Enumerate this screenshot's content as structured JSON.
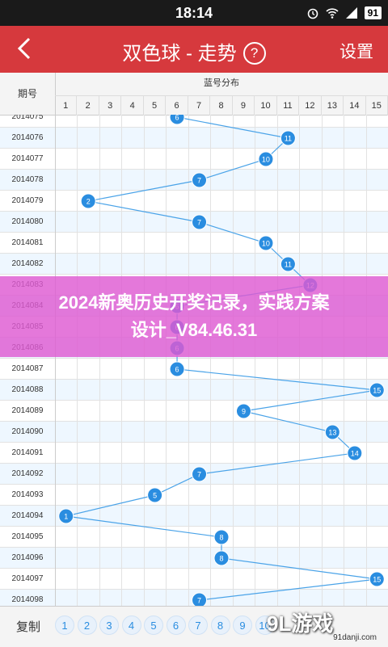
{
  "status_bar": {
    "time": "18:14",
    "battery": "91"
  },
  "title_bar": {
    "title": "双色球 - 走势",
    "help_icon": "?",
    "settings_label": "设置"
  },
  "header": {
    "period_label": "期号",
    "blue_ball_label": "蓝号分布",
    "columns": [
      "1",
      "2",
      "3",
      "4",
      "5",
      "6",
      "7",
      "8",
      "9",
      "10",
      "11",
      "12",
      "13",
      "14",
      "15"
    ]
  },
  "rows": [
    {
      "period": "2014075",
      "blue": 6
    },
    {
      "period": "2014076",
      "blue": 11
    },
    {
      "period": "2014077",
      "blue": 10
    },
    {
      "period": "2014078",
      "blue": 7
    },
    {
      "period": "2014079",
      "blue": 2
    },
    {
      "period": "2014080",
      "blue": 7
    },
    {
      "period": "2014081",
      "blue": 10
    },
    {
      "period": "2014082",
      "blue": 11
    },
    {
      "period": "2014083",
      "blue": 12
    },
    {
      "period": "2014084",
      "blue": 6
    },
    {
      "period": "2014085",
      "blue": 6
    },
    {
      "period": "2014086",
      "blue": 6
    },
    {
      "period": "2014087",
      "blue": 6
    },
    {
      "period": "2014088",
      "blue": 15
    },
    {
      "period": "2014089",
      "blue": 9
    },
    {
      "period": "2014090",
      "blue": 13
    },
    {
      "period": "2014091",
      "blue": 14
    },
    {
      "period": "2014092",
      "blue": 7
    },
    {
      "period": "2014093",
      "blue": 5
    },
    {
      "period": "2014094",
      "blue": 1
    },
    {
      "period": "2014095",
      "blue": 8
    },
    {
      "period": "2014096",
      "blue": 8
    },
    {
      "period": "2014097",
      "blue": 15
    },
    {
      "period": "2014098",
      "blue": 7
    }
  ],
  "banner": {
    "line1": "2024新奥历史开奖记录，实践方案",
    "line2": "设计_V84.46.31"
  },
  "footer": {
    "copy_label": "复制",
    "buttons": [
      "1",
      "2",
      "3",
      "4",
      "5",
      "6",
      "7",
      "8",
      "9",
      "10"
    ]
  },
  "watermark": {
    "brand": "9L游戏",
    "site": "91danji.com"
  },
  "colors": {
    "title_bar": "#d6393d",
    "ball": "#2a8de0",
    "banner": "#de5ad2"
  }
}
